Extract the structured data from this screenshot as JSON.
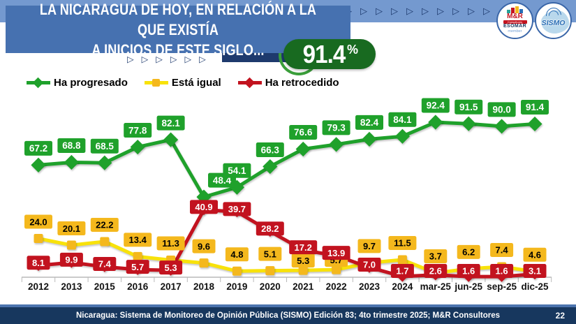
{
  "header": {
    "title_line1": "LA NICARAGUA DE HOY, EN RELACIÓN A LA QUE EXISTÍA",
    "title_line2": "A INICIOS DE ESTE SIGLO...",
    "badge": {
      "value": "91.4",
      "unit": "%"
    }
  },
  "logos": {
    "mr": {
      "name": "M&R",
      "sub": "Consultores",
      "org": "ESOMAR",
      "member": "member"
    },
    "sismo": {
      "name": "SISMO"
    }
  },
  "legend": [
    {
      "label": "Ha progresado"
    },
    {
      "label": "Está igual"
    },
    {
      "label": "Ha retrocedido"
    }
  ],
  "chart_data": {
    "type": "line",
    "title": "La Nicaragua de hoy, en relación a la que existía a inicios de este siglo",
    "categories": [
      "2012",
      "2013",
      "2015",
      "2016",
      "2017",
      "2018",
      "2019",
      "2020",
      "2021",
      "2022",
      "2023",
      "2024",
      "mar-25",
      "jun-25",
      "sep-25",
      "dic-25"
    ],
    "series": [
      {
        "name": "Ha progresado",
        "color": "#1fa12b",
        "label_text_color": "#ffffff",
        "marker": "diamond",
        "values": [
          67.2,
          68.8,
          68.5,
          77.8,
          82.1,
          48.4,
          54.1,
          66.3,
          76.6,
          79.3,
          82.4,
          84.1,
          92.4,
          91.5,
          90.0,
          91.4
        ],
        "labels": [
          "67.2",
          "68.8",
          "68.5",
          "77.8",
          "82.1",
          "48.4",
          "54.1",
          "66.3",
          "76.6",
          "79.3",
          "82.4",
          "84.1",
          "92.4",
          "91.5",
          "90.0",
          "91.4"
        ]
      },
      {
        "name": "Está igual",
        "color": "#f4b81d",
        "line_color": "#f8e20a",
        "label_text_color": "#000000",
        "marker": "square",
        "values": [
          24.0,
          20.1,
          22.2,
          13.4,
          11.3,
          9.6,
          4.8,
          5.1,
          5.3,
          5.7,
          9.7,
          11.5,
          3.7,
          6.2,
          7.4,
          4.6
        ],
        "labels": [
          "24.0",
          "20.1",
          "22.2",
          "13.4",
          "11.3",
          "9.6",
          "4.8",
          "5.1",
          "5.3",
          "5.7",
          "9.7",
          "11.5",
          "3.7",
          "6.2",
          "7.4",
          "4.6"
        ]
      },
      {
        "name": "Ha retrocedido",
        "color": "#c2131f",
        "label_text_color": "#ffffff",
        "marker": "diamond",
        "values": [
          8.1,
          9.9,
          7.4,
          5.7,
          5.3,
          40.9,
          39.7,
          28.2,
          17.2,
          13.9,
          7.0,
          1.7,
          2.6,
          1.6,
          1.6,
          3.1
        ],
        "labels": [
          "8.1",
          "9.9",
          "7.4",
          "5.7",
          "5.3",
          "40.9",
          "39.7",
          "28.2",
          "17.2",
          "13.9",
          "7.0",
          "1.7",
          "2.6",
          "1.6",
          "1.6",
          "3.1"
        ]
      }
    ],
    "ylim": [
      0,
      100
    ],
    "grid": false,
    "legend_position": "top-left",
    "x_axis_position": "bottom"
  },
  "footer": {
    "source": "Nicaragua: Sistema de Monitoreo de Opinión Pública (SISMO) Edición 83; 4to trimestre 2025; M&R Consultores",
    "page": "22"
  },
  "colors": {
    "top_strip": "#7499cf",
    "banner": "#4671b0",
    "navy": "#1e3a6d",
    "badge_green": "#186a20",
    "series_green": "#1fa12b",
    "series_yellow_box": "#f4b81d",
    "series_yellow_line": "#f8e20a",
    "series_red": "#c2131f",
    "axis": "#b9b9b9",
    "footer_navy": "#17375e"
  },
  "decor": {
    "top_arrow_count": 10,
    "sub_arrow_count": 6,
    "arrow_glyph": "▷"
  }
}
